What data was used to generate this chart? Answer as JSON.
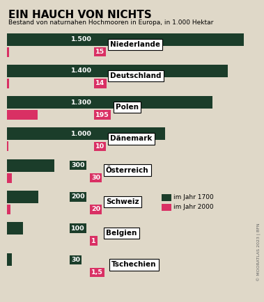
{
  "title": "EIN HAUCH VON NICHTS",
  "subtitle": "Bestand von naturnahen Hochmooren in Europa, in 1.000 Hektar",
  "background_color": "#dfd8c8",
  "dark_green": "#1b3d2a",
  "pink": "#d93064",
  "countries": [
    "Niederlande",
    "Deutschland",
    "Polen",
    "Dänemark",
    "Österreich",
    "Schweiz",
    "Belgien",
    "Tschechien"
  ],
  "val_1700": [
    1500,
    1400,
    1300,
    1000,
    300,
    200,
    100,
    30
  ],
  "val_2000": [
    15,
    14,
    195,
    10,
    30,
    20,
    1,
    1.5
  ],
  "label_1700": [
    "1.500",
    "1.400",
    "1.300",
    "1.000",
    "300",
    "200",
    "100",
    "30"
  ],
  "label_2000": [
    "15",
    "14",
    "195",
    "10",
    "30",
    "20",
    "1",
    "1,5"
  ],
  "legend_1700": "im Jahr 1700",
  "legend_2000": "im Jahr 2000",
  "source_text": "© MOORATLAS 2023 | BFN",
  "max_val": 1500,
  "bar_scale": 0.83
}
